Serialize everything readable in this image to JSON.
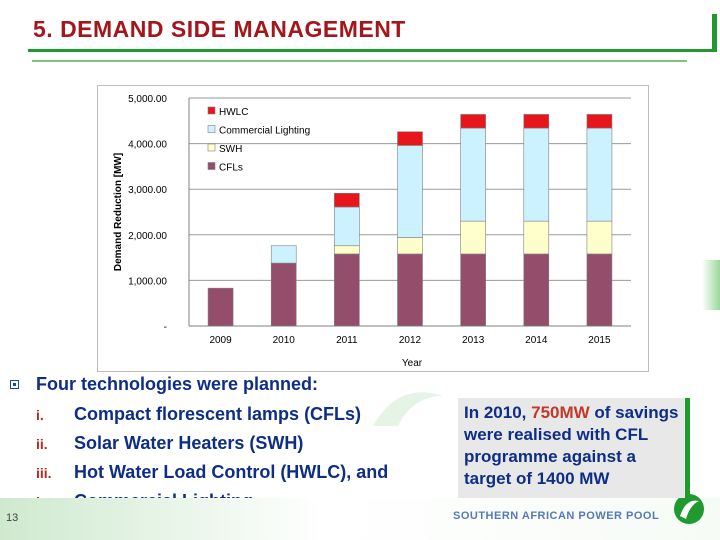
{
  "slide": {
    "title": "5. DEMAND SIDE MANAGEMENT",
    "page_number": "13",
    "footer_logo": "SOUTHERN AFRICAN POWER POOL"
  },
  "colors": {
    "title": "#a3161b",
    "accent": "#1e9a2e",
    "text": "#0e2e86",
    "hwlc": "#e8151b",
    "commercial_lighting": "#ccf2ff",
    "swh": "#ffffcc",
    "cfls": "#944d6b"
  },
  "bullets": {
    "intro": "Four technologies were planned:",
    "items": [
      {
        "num": "i.",
        "text": "Compact florescent lamps (CFLs)"
      },
      {
        "num": "ii.",
        "text": "Solar Water Heaters (SWH)"
      },
      {
        "num": "iii.",
        "text": "Hot Water Load Control (HWLC), and"
      },
      {
        "num": "iv.",
        "text": "Commercial Lighting"
      }
    ]
  },
  "callout": {
    "before": "In 2010, ",
    "highlight": "750MW",
    "after": " of savings were realised with CFL programme against a target of 1400 MW"
  },
  "chart_data": {
    "type": "bar",
    "stacked": true,
    "title": "",
    "xlabel": "Year",
    "ylabel": "Demand Reduction [MW]",
    "ylim": [
      0,
      5000
    ],
    "yticks": [
      {
        "value": 0,
        "label": "-"
      },
      {
        "value": 1000,
        "label": "1,000.00"
      },
      {
        "value": 2000,
        "label": "2,000.00"
      },
      {
        "value": 3000,
        "label": "3,000.00"
      },
      {
        "value": 4000,
        "label": "4,000.00"
      },
      {
        "value": 5000,
        "label": "5,000.00"
      }
    ],
    "categories": [
      "2009",
      "2010",
      "2011",
      "2012",
      "2013",
      "2014",
      "2015"
    ],
    "legend_position": "top-left",
    "legend_order": [
      "HWLC",
      "Commercial Lighting",
      "SWH",
      "CFLs"
    ],
    "series": [
      {
        "name": "CFLs",
        "color": "#944d6b",
        "values": [
          830,
          1380,
          1580,
          1580,
          1580,
          1580,
          1580
        ]
      },
      {
        "name": "SWH",
        "color": "#ffffcc",
        "values": [
          0,
          0,
          180,
          360,
          720,
          720,
          720
        ]
      },
      {
        "name": "Commercial Lighting",
        "color": "#ccf2ff",
        "values": [
          0,
          380,
          850,
          2020,
          2040,
          2040,
          2040
        ]
      },
      {
        "name": "HWLC",
        "color": "#e8151b",
        "values": [
          0,
          0,
          300,
          300,
          300,
          300,
          300
        ]
      }
    ]
  }
}
